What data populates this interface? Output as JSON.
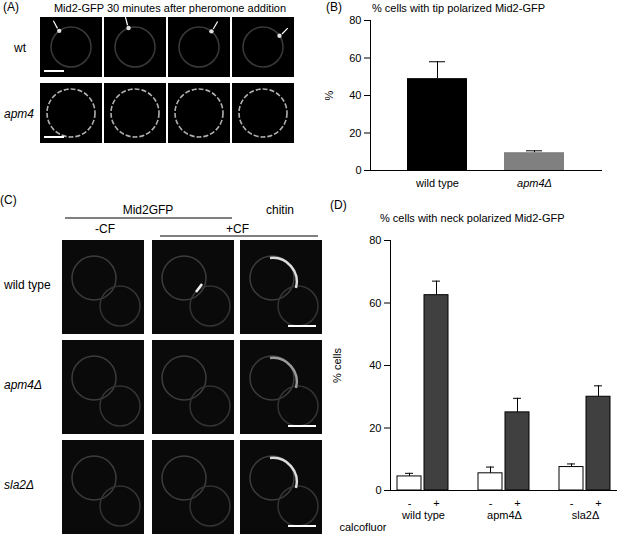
{
  "image_panels": [
    {
      "panel_label": "(A)",
      "title": "Mid2-GFP 30 minutes after pheromone addition",
      "rows": [
        "wt",
        "apm4"
      ]
    },
    {
      "panel_label": "(C)",
      "column_headers": [
        "Mid2GFP",
        "chitin"
      ],
      "subheaders": [
        "-CF",
        "+CF"
      ],
      "rows": [
        "wild type",
        "apm4Δ",
        "sla2Δ"
      ]
    }
  ],
  "chart_data": [
    {
      "type": "bar",
      "panel_label": "(B)",
      "title": "% cells with tip polarized Mid2-GFP",
      "y_label": "%",
      "categories": [
        "wild type",
        "apm4Δ"
      ],
      "values": [
        49,
        9.5
      ],
      "errors": [
        9,
        1
      ],
      "colors": [
        "#000000",
        "#808080"
      ],
      "ylim": [
        0,
        80
      ],
      "yticks": [
        0,
        20,
        40,
        60,
        80
      ]
    },
    {
      "type": "bar",
      "panel_label": "(D)",
      "title": "% cells with neck polarized Mid2-GFP",
      "y_label": "% cells",
      "x_label": "calcofluor",
      "categories": [
        "wild type",
        "apm4Δ",
        "sla2Δ"
      ],
      "series": [
        {
          "name": "-",
          "color": "#ffffff",
          "values": [
            4.5,
            5.5,
            7.5
          ],
          "errors": [
            1,
            2,
            1
          ]
        },
        {
          "name": "+",
          "color": "#404040",
          "values": [
            62.5,
            25,
            30
          ],
          "errors": [
            4.5,
            4.5,
            3.5
          ]
        }
      ],
      "ylim": [
        0,
        80
      ],
      "yticks": [
        0,
        20,
        40,
        60,
        80
      ]
    }
  ]
}
